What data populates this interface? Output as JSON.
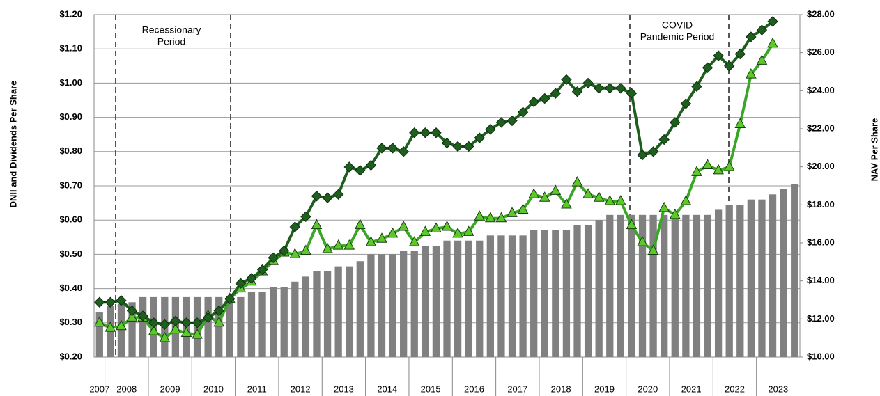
{
  "chart_data": {
    "type": "bar_line",
    "y_label": "DNII and Dividends Per Share",
    "y2_label": "NAV Per Share",
    "annotations": [
      {
        "lines": [
          "Recessionary",
          "Period"
        ]
      },
      {
        "lines": [
          "COVID",
          "Pandemic Period"
        ]
      }
    ],
    "categories": [
      "2007",
      "2008",
      null,
      null,
      null,
      "2009",
      null,
      null,
      null,
      "2010",
      null,
      null,
      null,
      "2011",
      null,
      null,
      null,
      "2012",
      null,
      null,
      null,
      "2013",
      null,
      null,
      null,
      "2014",
      null,
      null,
      null,
      "2015",
      null,
      null,
      null,
      "2016",
      null,
      null,
      null,
      "2017",
      null,
      null,
      null,
      "2018",
      null,
      null,
      null,
      "2019",
      null,
      null,
      null,
      "2020",
      null,
      null,
      null,
      "2021",
      null,
      null,
      null,
      "2022",
      null,
      null,
      null,
      "2023",
      null,
      null,
      null
    ],
    "ylim": [
      0.2,
      1.2
    ],
    "yticks": [
      {
        "value": 0.2,
        "label": "$0.20"
      },
      {
        "value": 0.3,
        "label": "$0.30"
      },
      {
        "value": 0.4,
        "label": "$0.40"
      },
      {
        "value": 0.5,
        "label": "$0.50"
      },
      {
        "value": 0.6,
        "label": "$0.60"
      },
      {
        "value": 0.7,
        "label": "$0.70"
      },
      {
        "value": 0.8,
        "label": "$0.80"
      },
      {
        "value": 0.9,
        "label": "$0.90"
      },
      {
        "value": 1.0,
        "label": "$1.00"
      },
      {
        "value": 1.1,
        "label": "$1.10"
      },
      {
        "value": 1.2,
        "label": "$1.20"
      }
    ],
    "y2lim": [
      10,
      28
    ],
    "y2ticks": [
      {
        "value": 10,
        "label": "$10.00"
      },
      {
        "value": 12,
        "label": "$12.00"
      },
      {
        "value": 14,
        "label": "$14.00"
      },
      {
        "value": 16,
        "label": "$16.00"
      },
      {
        "value": 18,
        "label": "$18.00"
      },
      {
        "value": 20,
        "label": "$20.00"
      },
      {
        "value": 22,
        "label": "$22.00"
      },
      {
        "value": 24,
        "label": "$24.00"
      },
      {
        "value": 26,
        "label": "$26.00"
      },
      {
        "value": 28,
        "label": "$28.00"
      }
    ],
    "grid": true,
    "series": [
      {
        "kind": "bar",
        "color": "#808080",
        "values": [
          0.33,
          0.35,
          0.355,
          0.36,
          0.375,
          0.375,
          0.375,
          0.375,
          0.375,
          0.375,
          0.375,
          0.375,
          0.375,
          0.375,
          0.39,
          0.39,
          0.405,
          0.405,
          0.42,
          0.435,
          0.45,
          0.45,
          0.465,
          0.465,
          0.48,
          0.5,
          0.5,
          0.5,
          0.51,
          0.51,
          0.525,
          0.525,
          0.54,
          0.54,
          0.54,
          0.54,
          0.555,
          0.555,
          0.555,
          0.555,
          0.57,
          0.57,
          0.57,
          0.57,
          0.585,
          0.585,
          0.6,
          0.615,
          0.615,
          0.615,
          0.615,
          0.615,
          0.615,
          0.615,
          0.615,
          0.615,
          0.615,
          0.63,
          0.645,
          0.645,
          0.66,
          0.66,
          0.675,
          0.69,
          0.705
        ]
      },
      {
        "kind": "line",
        "marker": "triangle",
        "color": "#3aa625",
        "values": [
          0.3,
          0.285,
          0.29,
          0.315,
          0.315,
          0.275,
          0.255,
          0.28,
          0.27,
          0.265,
          0.32,
          0.3,
          0.37,
          0.4,
          0.42,
          0.45,
          0.48,
          0.505,
          0.5,
          0.51,
          0.585,
          0.515,
          0.525,
          0.525,
          0.585,
          0.535,
          0.545,
          0.56,
          0.58,
          0.535,
          0.565,
          0.575,
          0.58,
          0.56,
          0.565,
          0.61,
          0.605,
          0.605,
          0.62,
          0.63,
          0.675,
          0.665,
          0.685,
          0.645,
          0.71,
          0.675,
          0.665,
          0.655,
          0.655,
          0.585,
          0.535,
          0.51,
          0.635,
          0.615,
          0.655,
          0.74,
          0.76,
          0.745,
          0.755,
          0.88,
          1.025,
          1.065,
          1.115,
          null,
          null
        ]
      },
      {
        "kind": "line",
        "marker": "diamond",
        "axis": "y2",
        "color": "#1e5e1e",
        "values": [
          12.88,
          12.88,
          12.97,
          12.43,
          12.16,
          11.8,
          11.71,
          11.89,
          11.8,
          11.8,
          12.07,
          12.43,
          13.06,
          13.87,
          14.14,
          14.59,
          15.22,
          15.58,
          16.84,
          17.38,
          18.46,
          18.37,
          18.55,
          19.99,
          19.81,
          20.08,
          20.98,
          20.98,
          20.8,
          21.79,
          21.79,
          21.79,
          21.25,
          21.07,
          21.07,
          21.52,
          21.97,
          22.33,
          22.42,
          22.87,
          23.41,
          23.59,
          23.86,
          24.58,
          23.95,
          24.4,
          24.13,
          24.13,
          24.13,
          23.86,
          20.62,
          20.8,
          21.43,
          22.33,
          23.32,
          24.22,
          25.21,
          25.84,
          25.3,
          25.93,
          26.83,
          27.19,
          27.64,
          null,
          null
        ]
      }
    ]
  }
}
